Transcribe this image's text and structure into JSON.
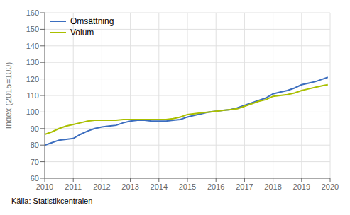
{
  "chart_data": {
    "type": "line",
    "ylabel": "Index (2015=100)",
    "annotations": [
      "Källa: Statistikcentralen"
    ],
    "x": [
      2010.0,
      2010.25,
      2010.5,
      2010.75,
      2011.0,
      2011.25,
      2011.5,
      2011.75,
      2012.0,
      2012.25,
      2012.5,
      2012.75,
      2013.0,
      2013.25,
      2013.5,
      2013.75,
      2014.0,
      2014.25,
      2014.5,
      2014.75,
      2015.0,
      2015.25,
      2015.5,
      2015.75,
      2016.0,
      2016.25,
      2016.5,
      2016.75,
      2017.0,
      2017.25,
      2017.5,
      2017.75,
      2018.0,
      2018.25,
      2018.5,
      2018.75,
      2019.0,
      2019.25,
      2019.5,
      2019.75,
      2019.92
    ],
    "series": [
      {
        "name": "Omsättning",
        "color": "#3c6ebf",
        "values": [
          80.0,
          81.5,
          83.0,
          83.5,
          84.0,
          86.5,
          88.5,
          90.0,
          91.0,
          91.5,
          92.0,
          93.5,
          94.5,
          95.0,
          95.0,
          94.5,
          94.5,
          94.5,
          95.0,
          95.5,
          97.0,
          98.0,
          99.0,
          100.0,
          100.5,
          101.0,
          101.5,
          102.5,
          104.0,
          105.5,
          107.0,
          108.5,
          111.0,
          112.0,
          113.0,
          114.5,
          116.5,
          117.5,
          118.5,
          120.0,
          121.0
        ]
      },
      {
        "name": "Volum",
        "color": "#aabf00",
        "values": [
          86.5,
          88.0,
          90.0,
          91.5,
          92.5,
          93.5,
          94.5,
          95.0,
          95.0,
          95.0,
          95.0,
          95.5,
          95.5,
          95.5,
          95.5,
          95.5,
          95.5,
          95.5,
          96.0,
          97.0,
          98.5,
          99.0,
          99.5,
          100.0,
          100.5,
          101.0,
          101.5,
          102.0,
          103.5,
          105.0,
          106.5,
          107.5,
          109.5,
          110.0,
          110.5,
          111.5,
          113.0,
          114.0,
          115.0,
          116.0,
          116.5
        ]
      }
    ],
    "xlim": [
      2010,
      2020
    ],
    "xticks": [
      2010,
      2011,
      2012,
      2013,
      2014,
      2015,
      2016,
      2017,
      2018,
      2019,
      2020
    ],
    "ylim": [
      60,
      160
    ],
    "yticks": [
      60,
      70,
      80,
      90,
      100,
      110,
      120,
      130,
      140,
      150,
      160
    ],
    "grid": true,
    "legend": "upper left"
  }
}
